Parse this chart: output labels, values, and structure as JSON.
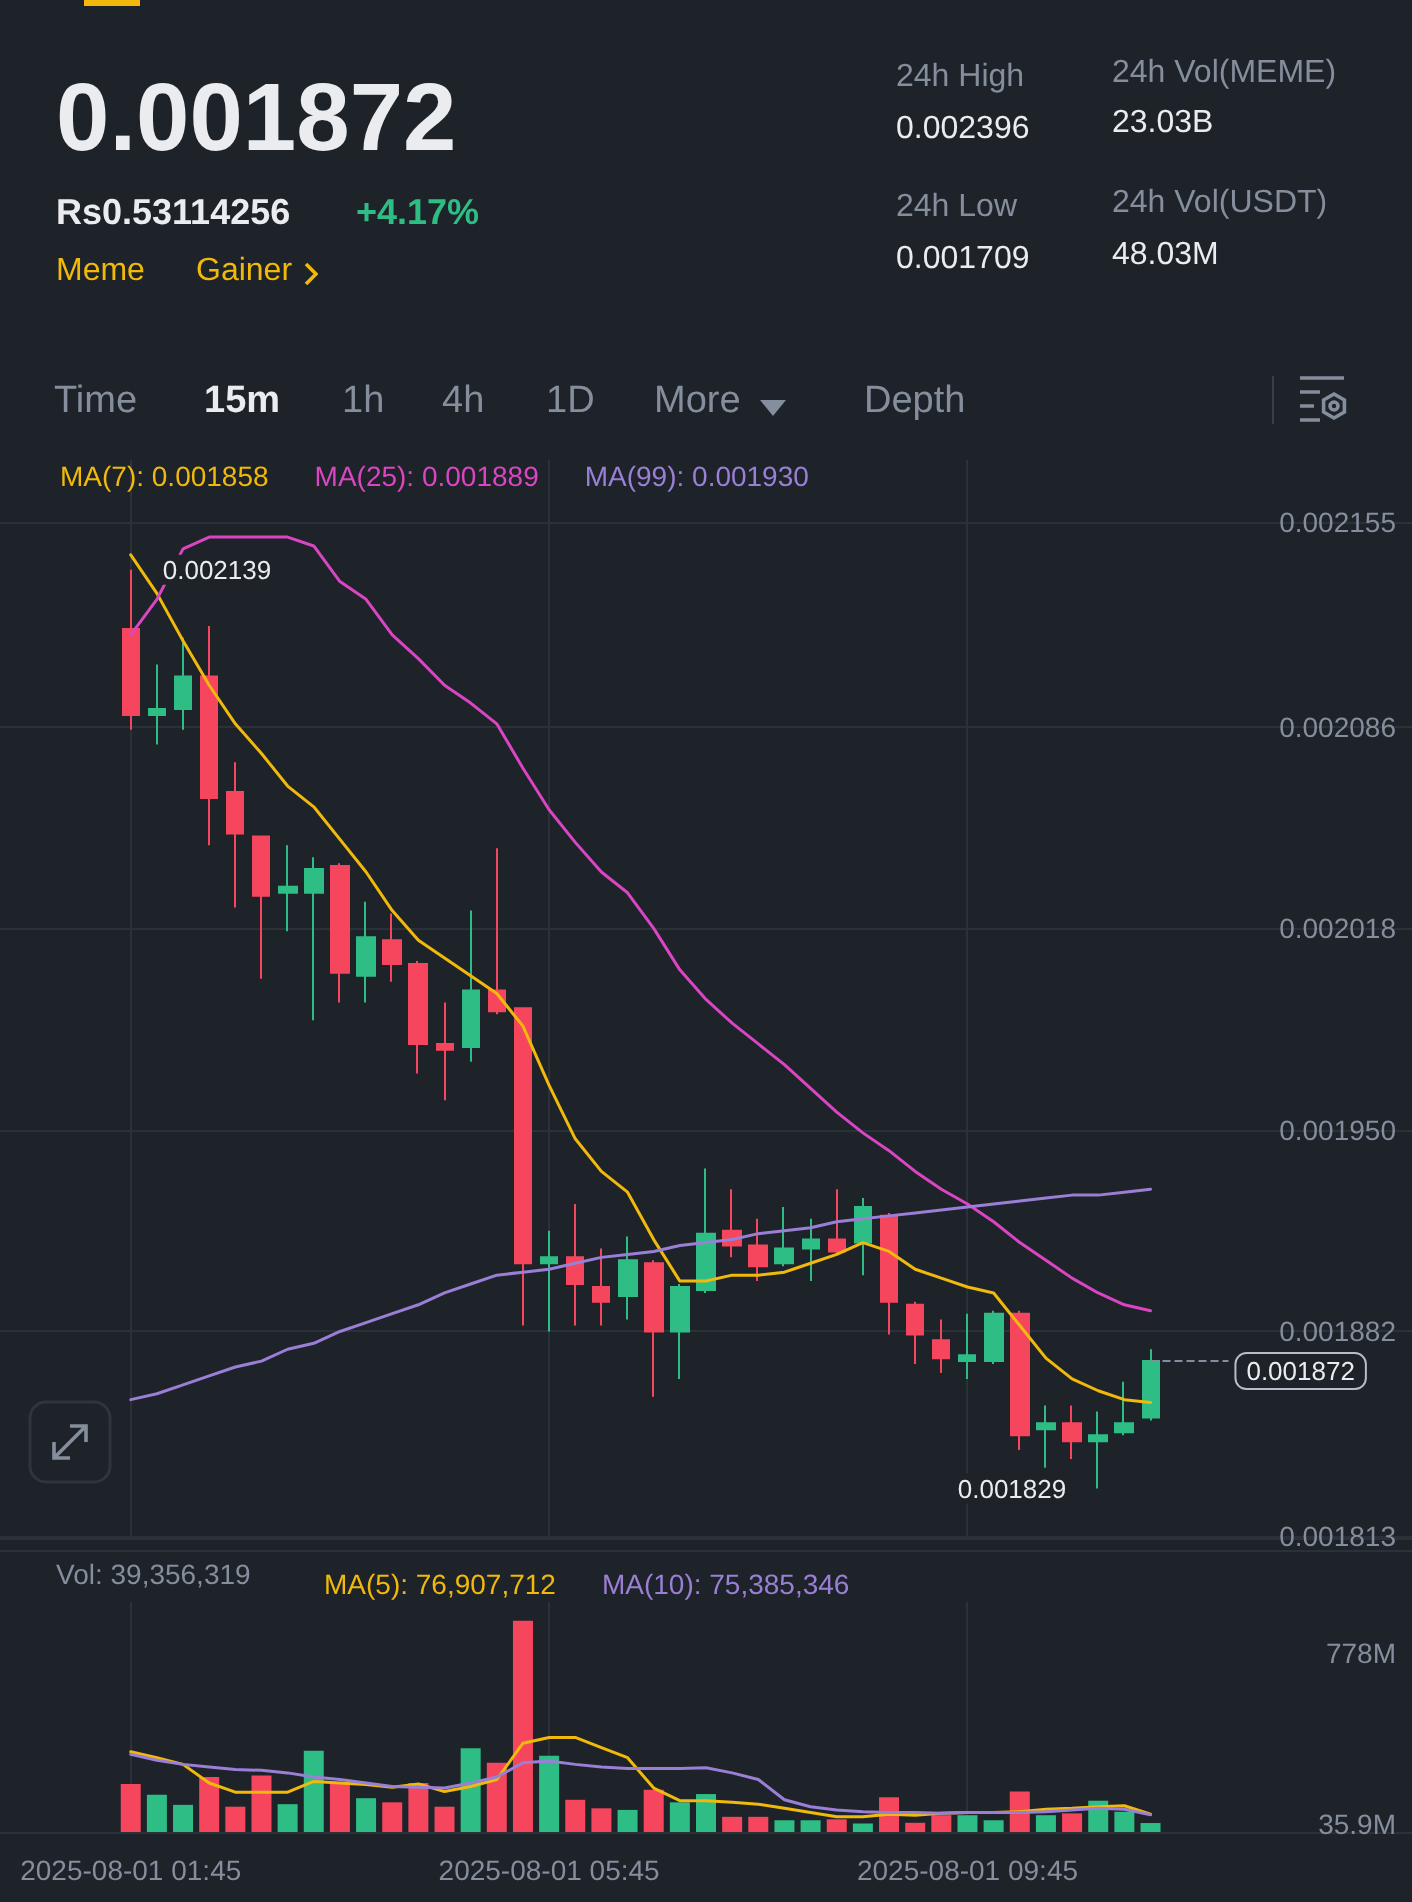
{
  "chart_data": [
    {
      "type": "candlestick",
      "annotations": [
        "0.001872",
        "Rs0.53114256",
        "+4.17%",
        "Meme",
        "Gainer",
        "24h High",
        "0.002396",
        "24h Low",
        "0.001709",
        "24h Vol(MEME)",
        "23.03B",
        "24h Vol(USDT)",
        "48.03M",
        "Time",
        "15m",
        "1h",
        "4h",
        "1D",
        "More",
        "Depth",
        {
          "text": "0.002139",
          "x": "2025-08-01T01:45",
          "y": 0.002139
        },
        {
          "text": "0.001829",
          "x": "2025-08-01T11:00",
          "y": 0.001829
        }
      ],
      "x": [
        "2025-08-01T01:45",
        "2025-08-01T02:00",
        "2025-08-01T02:15",
        "2025-08-01T02:30",
        "2025-08-01T02:45",
        "2025-08-01T03:00",
        "2025-08-01T03:15",
        "2025-08-01T03:30",
        "2025-08-01T03:45",
        "2025-08-01T04:00",
        "2025-08-01T04:15",
        "2025-08-01T04:30",
        "2025-08-01T04:45",
        "2025-08-01T05:00",
        "2025-08-01T05:15",
        "2025-08-01T05:30",
        "2025-08-01T05:45",
        "2025-08-01T06:00",
        "2025-08-01T06:15",
        "2025-08-01T06:30",
        "2025-08-01T06:45",
        "2025-08-01T07:00",
        "2025-08-01T07:15",
        "2025-08-01T07:30",
        "2025-08-01T07:45",
        "2025-08-01T08:00",
        "2025-08-01T08:15",
        "2025-08-01T08:30",
        "2025-08-01T08:45",
        "2025-08-01T09:00",
        "2025-08-01T09:15",
        "2025-08-01T09:30",
        "2025-08-01T09:45",
        "2025-08-01T10:00",
        "2025-08-01T10:15",
        "2025-08-01T10:30",
        "2025-08-01T10:45",
        "2025-08-01T11:00",
        "2025-08-01T11:15",
        "2025-08-01T11:30"
      ],
      "ohlc": [
        [
          0.002119,
          0.002139,
          0.002085,
          0.00209
        ],
        [
          0.00209,
          0.002107,
          0.00208,
          0.002092
        ],
        [
          0.002092,
          0.002116,
          0.002085,
          0.002103
        ],
        [
          0.002103,
          0.00212,
          0.002046,
          0.002062
        ],
        [
          0.002064,
          0.002074,
          0.002025,
          0.00205
        ],
        [
          0.002049,
          0.002049,
          0.002001,
          0.002029
        ],
        [
          0.00203,
          0.002046,
          0.002017,
          0.002032
        ],
        [
          0.00203,
          0.002042,
          0.001987,
          0.002038
        ],
        [
          0.002039,
          0.00204,
          0.001993,
          0.002003
        ],
        [
          0.002002,
          0.002027,
          0.001993,
          0.002015
        ],
        [
          0.002014,
          0.002023,
          0.002,
          0.002006
        ],
        [
          0.002006,
          0.002007,
          0.001969,
          0.001979
        ],
        [
          0.001979,
          0.001993,
          0.00196,
          0.001977
        ],
        [
          0.001978,
          0.002024,
          0.001973,
          0.001997
        ],
        [
          0.001997,
          0.002045,
          0.001989,
          0.00199
        ],
        [
          0.001991,
          0.001991,
          0.001884,
          0.001905
        ],
        [
          0.001905,
          0.001916,
          0.001882,
          0.001907
        ],
        [
          0.001907,
          0.001925,
          0.001884,
          0.001898
        ],
        [
          0.001897,
          0.00191,
          0.001884,
          0.001892
        ],
        [
          0.001894,
          0.001914,
          0.001886,
          0.001906
        ],
        [
          0.001905,
          0.001906,
          0.00186,
          0.001882
        ],
        [
          0.001882,
          0.001898,
          0.001866,
          0.001897
        ],
        [
          0.001896,
          0.001937,
          0.001895,
          0.001915
        ],
        [
          0.001916,
          0.00193,
          0.001907,
          0.001911
        ],
        [
          0.001911,
          0.00192,
          0.001899,
          0.001904
        ],
        [
          0.001905,
          0.001924,
          0.001904,
          0.00191
        ],
        [
          0.00191,
          0.00192,
          0.001899,
          0.001913
        ],
        [
          0.001913,
          0.00193,
          0.001908,
          0.001909
        ],
        [
          0.001912,
          0.001927,
          0.001901,
          0.001924
        ],
        [
          0.001921,
          0.001922,
          0.001881,
          0.001892
        ],
        [
          0.001891,
          0.001892,
          0.001871,
          0.001881
        ],
        [
          0.001879,
          0.001886,
          0.001868,
          0.001873
        ],
        [
          0.001872,
          0.001888,
          0.001866,
          0.001874
        ],
        [
          0.001872,
          0.001889,
          0.001871,
          0.001888
        ],
        [
          0.001888,
          0.001889,
          0.001842,
          0.001847
        ],
        [
          0.001849,
          0.001857,
          0.001836,
          0.001851
        ],
        [
          0.001851,
          0.001857,
          0.001839,
          0.001845
        ],
        [
          0.001845,
          0.001855,
          0.001829,
          0.001847
        ],
        [
          0.001848,
          0.001865,
          0.001847,
          0.001851
        ],
        [
          0.001853,
          0.001876,
          0.001852,
          0.001872
        ]
      ],
      "colors": [
        "#f6465d",
        "#2ebd85",
        "#2ebd85",
        "#f6465d",
        "#f6465d",
        "#f6465d",
        "#2ebd85",
        "#2ebd85",
        "#f6465d",
        "#2ebd85",
        "#f6465d",
        "#f6465d",
        "#f6465d",
        "#2ebd85",
        "#f6465d",
        "#f6465d",
        "#2ebd85",
        "#f6465d",
        "#f6465d",
        "#2ebd85",
        "#f6465d",
        "#2ebd85",
        "#2ebd85",
        "#f6465d",
        "#f6465d",
        "#2ebd85",
        "#2ebd85",
        "#f6465d",
        "#2ebd85",
        "#f6465d",
        "#f6465d",
        "#f6465d",
        "#2ebd85",
        "#2ebd85",
        "#f6465d",
        "#2ebd85",
        "#f6465d",
        "#2ebd85",
        "#2ebd85",
        "#2ebd85"
      ],
      "series": [
        {
          "name": "MA(7): 0.001858",
          "type": "line",
          "color": "#f0b90b",
          "values": [
            0.002144,
            0.002131,
            0.002115,
            0.0021,
            0.002087,
            0.002077,
            0.002066,
            0.002059,
            0.002048,
            0.002037,
            0.002024,
            0.002014,
            0.002008,
            0.002002,
            0.001996,
            0.001985,
            0.001965,
            0.001947,
            0.001936,
            0.001929,
            0.001913,
            0.001899,
            0.001899,
            0.001901,
            0.001901,
            0.001902,
            0.001905,
            0.001908,
            0.001912,
            0.001909,
            0.001903,
            0.0019,
            0.001897,
            0.001895,
            0.001884,
            0.001873,
            0.001866,
            0.001862,
            0.001859,
            0.001858
          ]
        },
        {
          "name": "MA(25): 0.001889",
          "type": "line",
          "color": "#d945c2",
          "values": [
            0.002117,
            0.002129,
            0.002146,
            0.00215,
            0.00215,
            0.00215,
            0.00215,
            0.002147,
            0.002135,
            0.002129,
            0.002117,
            0.002109,
            0.0021,
            0.002094,
            0.002087,
            0.002072,
            0.002058,
            0.002047,
            0.002037,
            0.00203,
            0.002018,
            0.002004,
            0.001994,
            0.001986,
            0.001979,
            0.001972,
            0.001964,
            0.001956,
            0.001949,
            0.001943,
            0.001936,
            0.00193,
            0.001925,
            0.001919,
            0.001912,
            0.001906,
            0.0019,
            0.001895,
            0.001891,
            0.001889
          ]
        },
        {
          "name": "MA(99): 0.001930",
          "type": "line",
          "color": "#9a7fd6",
          "values": [
            0.001859,
            0.001861,
            0.001864,
            0.001867,
            0.00187,
            0.001872,
            0.001876,
            0.001878,
            0.001882,
            0.001885,
            0.001888,
            0.001891,
            0.001895,
            0.001898,
            0.001901,
            0.001902,
            0.001903,
            0.001905,
            0.001907,
            0.001908,
            0.001909,
            0.001911,
            0.001912,
            0.001913,
            0.001915,
            0.001916,
            0.001917,
            0.001919,
            0.00192,
            0.001921,
            0.001922,
            0.001923,
            0.001924,
            0.001925,
            0.001926,
            0.001927,
            0.001928,
            0.001928,
            0.001929,
            0.00193
          ]
        }
      ],
      "xlim": [
        "2025-08-01T00:30",
        "2025-08-01T14:00"
      ],
      "xticks": [
        {
          "value": "2025-08-01T01:45",
          "label": null
        },
        {
          "value": "2025-08-01T05:45",
          "label": null
        },
        {
          "value": "2025-08-01T09:45",
          "label": null
        }
      ],
      "ylim": [
        0.001812,
        0.002176
      ],
      "yticks": [
        0.002155,
        0.002086,
        0.002018,
        {
          "value": 0.00195,
          "label": "0.001950"
        },
        0.001882,
        0.001813
      ],
      "ref_lines": [
        {
          "axis": "y",
          "value": 0.001872,
          "label": "0.001872",
          "line_style": "dashed",
          "color": "#848e9c"
        }
      ],
      "tick_labels": "y",
      "grid": true,
      "legend": "top left"
    },
    {
      "type": "bar",
      "annotations": [
        "Vol: 39,356,319"
      ],
      "x": [
        "2025-08-01T01:45",
        "2025-08-01T02:00",
        "2025-08-01T02:15",
        "2025-08-01T02:30",
        "2025-08-01T02:45",
        "2025-08-01T03:00",
        "2025-08-01T03:15",
        "2025-08-01T03:30",
        "2025-08-01T03:45",
        "2025-08-01T04:00",
        "2025-08-01T04:15",
        "2025-08-01T04:30",
        "2025-08-01T04:45",
        "2025-08-01T05:00",
        "2025-08-01T05:15",
        "2025-08-01T05:30",
        "2025-08-01T05:45",
        "2025-08-01T06:00",
        "2025-08-01T06:15",
        "2025-08-01T06:30",
        "2025-08-01T06:45",
        "2025-08-01T07:00",
        "2025-08-01T07:15",
        "2025-08-01T07:30",
        "2025-08-01T07:45",
        "2025-08-01T08:00",
        "2025-08-01T08:15",
        "2025-08-01T08:30",
        "2025-08-01T08:45",
        "2025-08-01T09:00",
        "2025-08-01T09:15",
        "2025-08-01T09:30",
        "2025-08-01T09:45",
        "2025-08-01T10:00",
        "2025-08-01T10:15",
        "2025-08-01T10:30",
        "2025-08-01T10:45",
        "2025-08-01T11:00",
        "2025-08-01T11:15",
        "2025-08-01T11:30"
      ],
      "series": [
        {
          "colors": [
            "#f6465d",
            "#2ebd85",
            "#2ebd85",
            "#f6465d",
            "#f6465d",
            "#f6465d",
            "#2ebd85",
            "#2ebd85",
            "#f6465d",
            "#2ebd85",
            "#f6465d",
            "#f6465d",
            "#f6465d",
            "#2ebd85",
            "#f6465d",
            "#f6465d",
            "#2ebd85",
            "#f6465d",
            "#f6465d",
            "#2ebd85",
            "#f6465d",
            "#2ebd85",
            "#2ebd85",
            "#f6465d",
            "#f6465d",
            "#2ebd85",
            "#2ebd85",
            "#f6465d",
            "#2ebd85",
            "#f6465d",
            "#f6465d",
            "#f6465d",
            "#2ebd85",
            "#2ebd85",
            "#f6465d",
            "#2ebd85",
            "#f6465d",
            "#2ebd85",
            "#2ebd85",
            "#2ebd85"
          ],
          "values": [
            209,
            162,
            118,
            239,
            110,
            246,
            121,
            353,
            213,
            147,
            129,
            213,
            110,
            364,
            301,
            919,
            331,
            140,
            103,
            96,
            184,
            129,
            165,
            66,
            66,
            51,
            51,
            55,
            37,
            151,
            40,
            73,
            73,
            51,
            176,
            73,
            81,
            136,
            88,
            39
          ]
        },
        {
          "name": "MA(5): 76,907,712",
          "type": "line",
          "color": "#f0b90b",
          "values": [
            349,
            323,
            294,
            213,
            173,
            173,
            173,
            220,
            213,
            206,
            195,
            209,
            176,
            198,
            228,
            386,
            411,
            411,
            367,
            323,
            191,
            136,
            136,
            129,
            121,
            103,
            85,
            66,
            66,
            77,
            73,
            81,
            85,
            85,
            88,
            99,
            103,
            110,
            114,
            77
          ]
        },
        {
          "name": "MA(10): 75,385,346",
          "type": "line",
          "color": "#9a7fd6",
          "values": [
            338,
            312,
            294,
            283,
            272,
            268,
            257,
            239,
            228,
            213,
            198,
            195,
            191,
            213,
            239,
            301,
            309,
            294,
            283,
            276,
            276,
            276,
            279,
            257,
            228,
            140,
            110,
            96,
            88,
            85,
            85,
            81,
            85,
            85,
            85,
            88,
            96,
            103,
            99,
            75
          ]
        }
      ],
      "xlim": [
        "2025-08-01T00:30",
        "2025-08-01T14:00"
      ],
      "xticks": [
        {
          "value": "2025-08-01T01:45",
          "label": "2025-08-01 01:45"
        },
        {
          "value": "2025-08-01T05:45",
          "label": "2025-08-01 05:45"
        },
        {
          "value": "2025-08-01T09:45",
          "label": "2025-08-01 09:45"
        }
      ],
      "ylim": [
        0,
        1000
      ],
      "yticks": [
        {
          "value": 778,
          "label": "778M"
        },
        {
          "value": 35.9,
          "label": "35.9M"
        }
      ],
      "grid": "x",
      "legend": "top left"
    }
  ]
}
